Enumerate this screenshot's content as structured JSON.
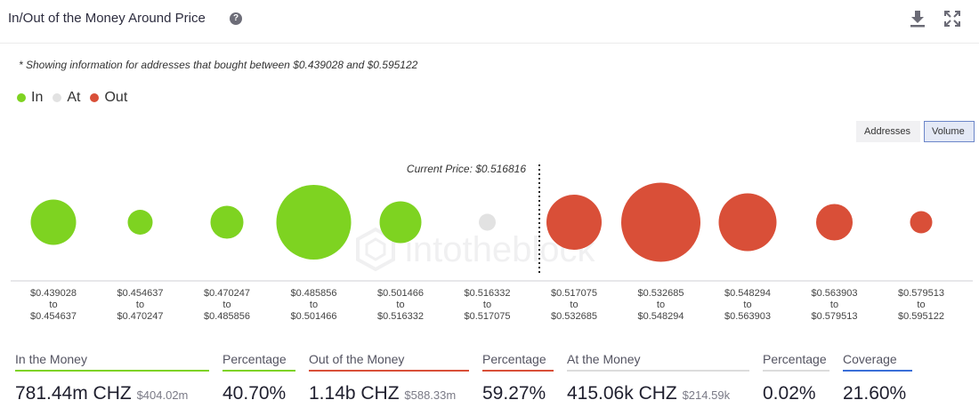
{
  "header": {
    "title": "In/Out of the Money Around Price",
    "help_icon": "?"
  },
  "note": "* Showing information for addresses that bought between $0.439028 and $0.595122",
  "legend": [
    {
      "label": "In",
      "color": "#7ed321"
    },
    {
      "label": "At",
      "color": "#e2e2e2"
    },
    {
      "label": "Out",
      "color": "#d94f38"
    }
  ],
  "toggle": {
    "addresses": "Addresses",
    "volume": "Volume",
    "selected": "Volume"
  },
  "chart_data": {
    "type": "scatter",
    "current_price_label": "Current Price: $0.516816",
    "current_price_position": 5.6,
    "watermark": "intotheblock",
    "categories": [
      {
        "from": "$0.439028",
        "to": "$0.454637",
        "status": "In",
        "size": 0.51
      },
      {
        "from": "$0.454637",
        "to": "$0.470247",
        "status": "In",
        "size": 0.28
      },
      {
        "from": "$0.470247",
        "to": "$0.485856",
        "status": "In",
        "size": 0.37
      },
      {
        "from": "$0.485856",
        "to": "$0.501466",
        "status": "In",
        "size": 0.84
      },
      {
        "from": "$0.501466",
        "to": "$0.516332",
        "status": "In",
        "size": 0.47
      },
      {
        "from": "$0.516332",
        "to": "$0.517075",
        "status": "At",
        "size": 0.19
      },
      {
        "from": "$0.517075",
        "to": "$0.532685",
        "status": "Out",
        "size": 0.62
      },
      {
        "from": "$0.532685",
        "to": "$0.548294",
        "status": "Out",
        "size": 0.89
      },
      {
        "from": "$0.548294",
        "to": "$0.563903",
        "status": "Out",
        "size": 0.65
      },
      {
        "from": "$0.563903",
        "to": "$0.579513",
        "status": "Out",
        "size": 0.41
      },
      {
        "from": "$0.579513",
        "to": "$0.595122",
        "status": "Out",
        "size": 0.25
      }
    ],
    "range_word": "to"
  },
  "stats": {
    "in_label": "In the Money",
    "in_value": "781.44m CHZ",
    "in_usd": "$404.02m",
    "in_pct_label": "Percentage",
    "in_pct": "40.70%",
    "out_label": "Out of the Money",
    "out_value": "1.14b CHZ",
    "out_usd": "$588.33m",
    "out_pct_label": "Percentage",
    "out_pct": "59.27%",
    "at_label": "At the Money",
    "at_value": "415.06k CHZ",
    "at_usd": "$214.59k",
    "at_pct_label": "Percentage",
    "at_pct": "0.02%",
    "coverage_label": "Coverage",
    "coverage": "21.60%",
    "colors": {
      "in": "#7ed321",
      "out": "#d94f38",
      "at": "#dcdcdc",
      "coverage": "#3a6fd8"
    }
  }
}
